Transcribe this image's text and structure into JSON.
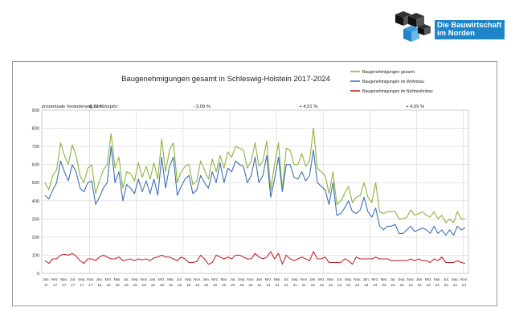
{
  "logo": {
    "line1": "Die Bauwirtschaft",
    "line2": "im Norden",
    "colors": {
      "dark": "#111111",
      "blue": "#1e86c8"
    }
  },
  "chart_data": {
    "type": "line",
    "title": "Baugenehmigungen gesamt in Schleswig-Holstein 2017-2024",
    "change_label": "prozentuale Veränderung zum Vorjahr:",
    "period_changes": [
      "- 8,22 %",
      "- 3,09 %",
      "+ 4,51 %",
      "+ 4,09 %"
    ],
    "ylim": [
      0,
      900
    ],
    "yticks": [
      0,
      100,
      200,
      300,
      400,
      500,
      600,
      700,
      800,
      900
    ],
    "grid": true,
    "legend_position": "top-right",
    "x_top": [
      "Jan.",
      "Mrz.",
      "Mai.",
      "Jul.",
      "Sep.",
      "Nov.",
      "Jan.",
      "Mrz.",
      "Mai.",
      "Jul.",
      "Sep.",
      "Nov.",
      "Jan.",
      "Mrz.",
      "Mai.",
      "Jul.",
      "Sep.",
      "Nov.",
      "Jan.",
      "Mrz.",
      "Mai.",
      "Jul.",
      "Sep.",
      "Nov.",
      "Jan.",
      "Mrz.",
      "Mai.",
      "Jul.",
      "Sep.",
      "Nov.",
      "Jan.",
      "Mrz.",
      "Mai.",
      "Jul.",
      "Sep.",
      "Nov.",
      "Jan.",
      "Mrz.",
      "Mai.",
      "Jul.",
      "Sep.",
      "Nov.",
      "Jan.",
      "Mrz.",
      "Mai.",
      "Jul.",
      "Sep.",
      "Nov."
    ],
    "x_bottom": [
      "17",
      "17",
      "17",
      "17",
      "17",
      "17",
      "18",
      "18",
      "18",
      "18",
      "18",
      "18",
      "19",
      "19",
      "19",
      "19",
      "19",
      "19",
      "20",
      "20",
      "20",
      "20",
      "20",
      "20",
      "21",
      "21",
      "21",
      "21",
      "21",
      "21",
      "22",
      "22",
      "22",
      "22",
      "22",
      "22",
      "23",
      "23",
      "23",
      "23",
      "23",
      "23",
      "24",
      "24",
      "24",
      "24",
      "24",
      "24"
    ],
    "series": [
      {
        "name": "Baugenehmigungen gesamt",
        "color": "#8db43c",
        "values": [
          500,
          460,
          540,
          570,
          720,
          650,
          600,
          710,
          650,
          540,
          500,
          580,
          600,
          440,
          510,
          570,
          600,
          770,
          580,
          640,
          470,
          560,
          550,
          510,
          610,
          530,
          590,
          520,
          610,
          520,
          740,
          560,
          680,
          720,
          500,
          560,
          590,
          600,
          490,
          510,
          620,
          570,
          520,
          630,
          560,
          650,
          580,
          670,
          640,
          700,
          690,
          680,
          580,
          620,
          720,
          590,
          620,
          730,
          460,
          600,
          720,
          460,
          690,
          680,
          600,
          600,
          660,
          590,
          620,
          800,
          580,
          560,
          540,
          440,
          560,
          380,
          400,
          440,
          480,
          390,
          420,
          430,
          500,
          420,
          390,
          500,
          340,
          330,
          340,
          340,
          340,
          300,
          300,
          310,
          350,
          320,
          330,
          340,
          320,
          310,
          340,
          300,
          320,
          280,
          300,
          280,
          340,
          300,
          300
        ],
        "count_note": ""
      },
      {
        "name": "Baugenehmigungen im Wohnbau",
        "color": "#3f6fb5",
        "values": [
          430,
          410,
          460,
          500,
          620,
          560,
          510,
          600,
          560,
          470,
          450,
          500,
          510,
          380,
          420,
          470,
          500,
          700,
          500,
          560,
          400,
          490,
          470,
          440,
          520,
          450,
          510,
          440,
          520,
          430,
          640,
          470,
          590,
          640,
          430,
          480,
          520,
          540,
          440,
          460,
          540,
          500,
          470,
          560,
          500,
          610,
          500,
          580,
          560,
          620,
          600,
          590,
          500,
          540,
          640,
          500,
          540,
          650,
          420,
          520,
          640,
          450,
          600,
          600,
          530,
          520,
          560,
          510,
          540,
          680,
          500,
          480,
          460,
          380,
          500,
          320,
          330,
          360,
          400,
          340,
          330,
          350,
          420,
          340,
          310,
          360,
          260,
          240,
          260,
          260,
          270,
          220,
          220,
          240,
          260,
          230,
          240,
          250,
          240,
          220,
          260,
          220,
          240,
          210,
          240,
          210,
          260,
          240,
          250
        ],
        "count_note": ""
      },
      {
        "name": "Baugenehmigungen im Nichtwohnbau",
        "color": "#c0272d",
        "values": [
          70,
          55,
          80,
          80,
          100,
          105,
          100,
          110,
          95,
          70,
          55,
          80,
          80,
          70,
          90,
          100,
          90,
          80,
          80,
          90,
          70,
          75,
          80,
          70,
          80,
          75,
          80,
          70,
          85,
          90,
          100,
          90,
          90,
          80,
          70,
          90,
          80,
          60,
          60,
          65,
          100,
          80,
          50,
          60,
          100,
          90,
          80,
          90,
          80,
          100,
          100,
          90,
          80,
          80,
          110,
          90,
          80,
          90,
          120,
          80,
          110,
          50,
          100,
          80,
          70,
          80,
          90,
          80,
          70,
          120,
          80,
          80,
          90,
          60,
          60,
          60,
          60,
          80,
          70,
          50,
          90,
          80,
          80,
          80,
          80,
          90,
          80,
          80,
          80,
          70,
          70,
          70,
          70,
          70,
          80,
          70,
          80,
          70,
          70,
          60,
          80,
          70,
          90,
          60,
          60,
          60,
          70,
          60,
          55
        ],
        "count_note": ""
      }
    ]
  }
}
